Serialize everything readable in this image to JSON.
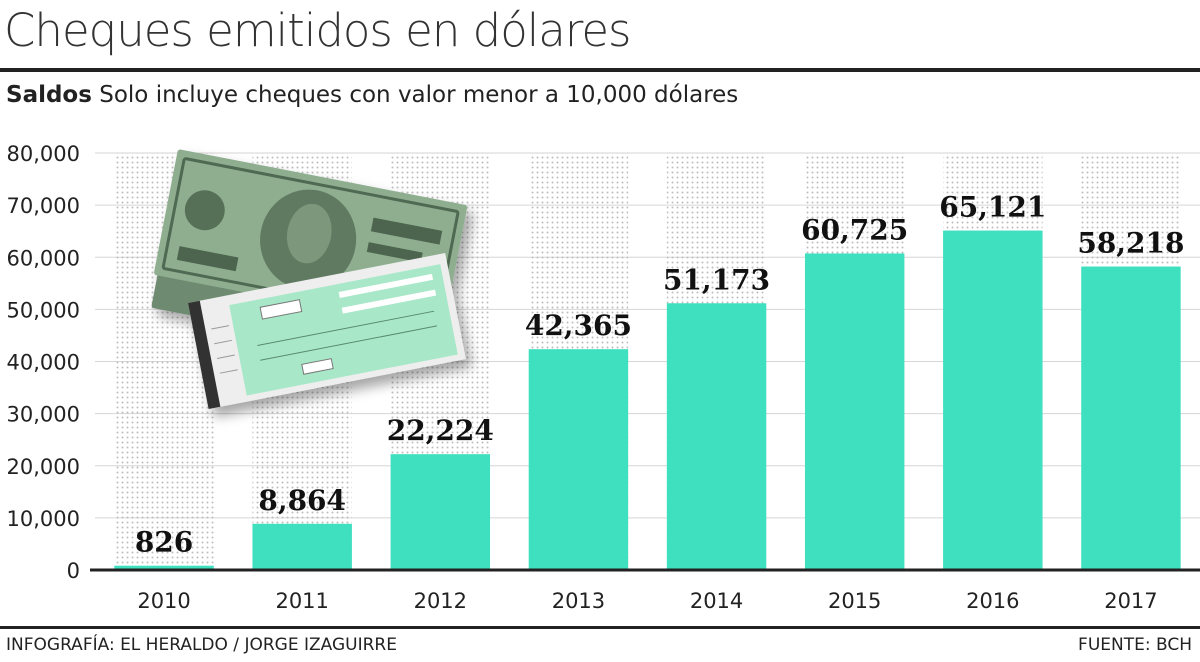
{
  "header": {
    "title": "Cheques emitidos en dólares",
    "subtitle_bold": "Saldos",
    "subtitle_rest": "Solo incluye cheques con valor menor a 10,000 dólares"
  },
  "footer": {
    "credit": "INFOGRAFÍA: EL HERALDO / JORGE IZAGUIRRE",
    "source": "FUENTE: BCH"
  },
  "colors": {
    "bar": "#3fe0c0",
    "axis": "#222222",
    "dots": "#bdbdbd",
    "bill": "#7f9a80",
    "cheque": "#a8e8c8"
  },
  "chart_data": {
    "type": "bar",
    "categories": [
      "2010",
      "2011",
      "2012",
      "2013",
      "2014",
      "2015",
      "2016",
      "2017"
    ],
    "values": [
      826,
      8864,
      22224,
      42365,
      51173,
      60725,
      65121,
      58218
    ],
    "value_labels": [
      "826",
      "8,864",
      "22,224",
      "42,365",
      "51,173",
      "60,725",
      "65,121",
      "58,218"
    ],
    "ylim": [
      0,
      80000
    ],
    "yticks": [
      0,
      10000,
      20000,
      30000,
      40000,
      50000,
      60000,
      70000,
      80000
    ],
    "ytick_labels": [
      "0",
      "10,000",
      "20,000",
      "30,000",
      "40,000",
      "50,000",
      "60,000",
      "70,000",
      "80,000"
    ],
    "grid": true
  }
}
